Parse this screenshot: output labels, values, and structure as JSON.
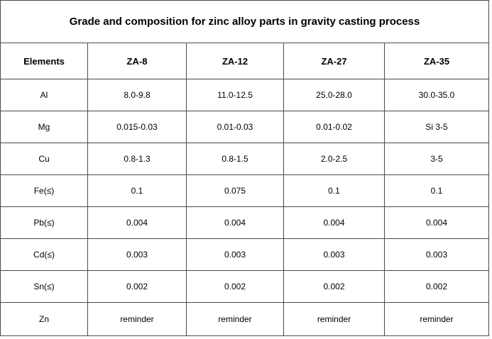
{
  "table": {
    "title": "Grade and composition for zinc alloy parts in gravity casting process",
    "headers": [
      "Elements",
      "ZA-8",
      "ZA-12",
      "ZA-27",
      "ZA-35"
    ],
    "rows": [
      [
        "Al",
        "8.0-9.8",
        "11.0-12.5",
        "25.0-28.0",
        "30.0-35.0"
      ],
      [
        "Mg",
        "0.015-0.03",
        "0.01-0.03",
        "0.01-0.02",
        "Si 3-5"
      ],
      [
        "Cu",
        "0.8-1.3",
        "0.8-1.5",
        "2.0-2.5",
        "3-5"
      ],
      [
        "Fe(≤)",
        "0.1",
        "0.075",
        "0.1",
        "0.1"
      ],
      [
        "Pb(≤)",
        "0.004",
        "0.004",
        "0.004",
        "0.004"
      ],
      [
        "Cd(≤)",
        "0.003",
        "0.003",
        "0.003",
        "0.003"
      ],
      [
        "Sn(≤)",
        "0.002",
        "0.002",
        "0.002",
        "0.002"
      ],
      [
        "Zn",
        "reminder",
        "reminder",
        "reminder",
        "reminder"
      ]
    ]
  }
}
